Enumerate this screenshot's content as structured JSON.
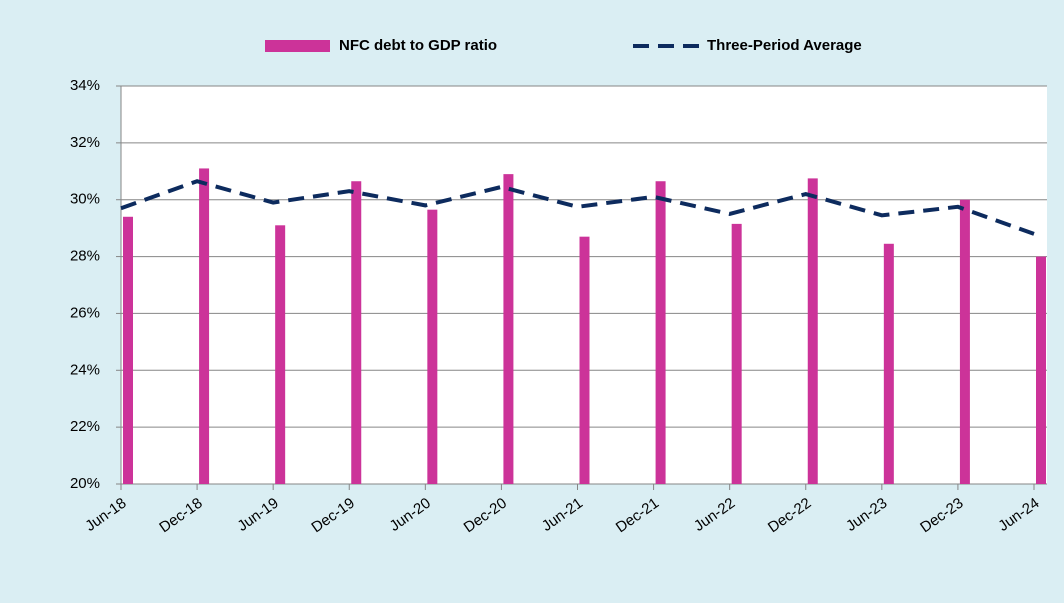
{
  "chart_data": {
    "type": "bar",
    "categories": [
      "Jun-18",
      "Dec-18",
      "Jun-19",
      "Dec-19",
      "Jun-20",
      "Dec-20",
      "Jun-21",
      "Dec-21",
      "Jun-22",
      "Dec-22",
      "Jun-23",
      "Dec-23",
      "Jun-24"
    ],
    "series": [
      {
        "name": "NFC debt to GDP ratio",
        "type": "bar",
        "color": "#cc3399",
        "values": [
          29.4,
          31.1,
          29.1,
          30.65,
          29.65,
          30.9,
          28.7,
          30.65,
          29.15,
          30.75,
          28.45,
          30.0,
          28.0
        ]
      },
      {
        "name": "Three-Period Average",
        "type": "line",
        "dashed": true,
        "color": "#0d2b5e",
        "values": [
          29.7,
          30.65,
          29.9,
          30.3,
          29.8,
          30.45,
          29.75,
          30.1,
          29.5,
          30.2,
          29.45,
          29.75,
          28.8
        ]
      }
    ],
    "ylim": [
      20,
      34
    ],
    "yticks": [
      {
        "value": 20,
        "label": "20%"
      },
      {
        "value": 22,
        "label": "22%"
      },
      {
        "value": 24,
        "label": "24%"
      },
      {
        "value": 26,
        "label": "26%"
      },
      {
        "value": 28,
        "label": "28%"
      },
      {
        "value": 30,
        "label": "30%"
      },
      {
        "value": 32,
        "label": "32%"
      },
      {
        "value": 34,
        "label": "34%"
      }
    ],
    "grid": true,
    "legend": "top"
  }
}
